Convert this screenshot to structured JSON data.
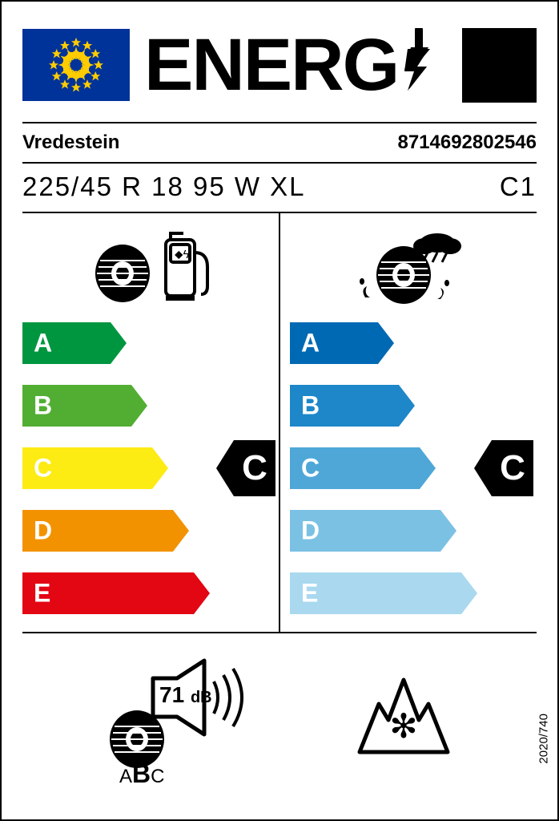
{
  "header": {
    "title": "ENERG"
  },
  "manufacturer": "Vredestein",
  "ean": "8714692802546",
  "tyre_size": "225/45 R 18 95 W XL",
  "tyre_class": "C1",
  "regulation": "2020/740",
  "fuel_chart": {
    "letters": [
      "A",
      "B",
      "C",
      "D",
      "E"
    ],
    "widths": [
      110,
      136,
      162,
      188,
      214
    ],
    "colors": [
      "#009640",
      "#52ae32",
      "#fdeb14",
      "#f39200",
      "#e30613"
    ],
    "rating": "C",
    "rating_index": 2
  },
  "wet_chart": {
    "letters": [
      "A",
      "B",
      "C",
      "D",
      "E"
    ],
    "widths": [
      110,
      136,
      162,
      188,
      214
    ],
    "colors": [
      "#0069b4",
      "#1d87c9",
      "#4fa7d8",
      "#7bc1e4",
      "#a9d8ef"
    ],
    "rating": "C",
    "rating_index": 2
  },
  "noise": {
    "value": "71",
    "unit": "dB",
    "classes": "ABC",
    "selected_class": "B"
  },
  "snow_grip": true
}
